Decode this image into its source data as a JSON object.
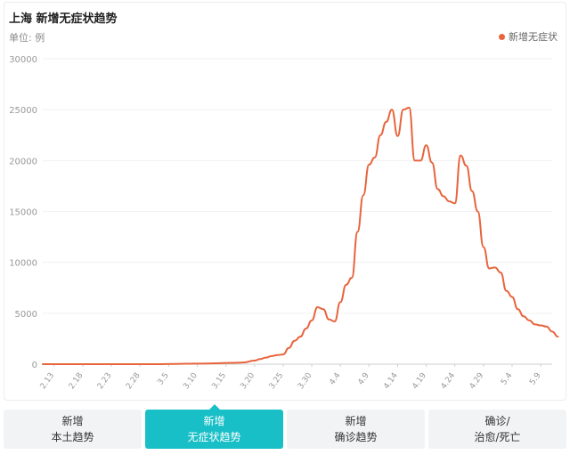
{
  "header": {
    "title": "上海 新增无症状趋势",
    "unit": "单位: 例"
  },
  "legend": {
    "label": "新增无症状",
    "color": "#e8643c"
  },
  "tabs": [
    {
      "line1": "新增",
      "line2": "本土趋势",
      "active": false
    },
    {
      "line1": "新增",
      "line2": "无症状趋势",
      "active": true
    },
    {
      "line1": "新增",
      "line2": "确诊趋势",
      "active": false
    },
    {
      "line1": "确诊/",
      "line2": "治愈/死亡",
      "active": false
    }
  ],
  "chart_data": {
    "type": "line",
    "title": "上海 新增无症状趋势",
    "ylabel": "单位: 例",
    "ylim": [
      0,
      30000
    ],
    "yticks": [
      0,
      5000,
      10000,
      15000,
      20000,
      25000,
      30000
    ],
    "grid": true,
    "legend_position": "top-right",
    "x_tick_labels": [
      "2.13",
      "2.18",
      "2.23",
      "2.28",
      "3.5",
      "3.10",
      "3.15",
      "3.20",
      "3.25",
      "3.30",
      "4.4",
      "4.9",
      "4.14",
      "4.19",
      "4.24",
      "4.29",
      "5.4",
      "5.9"
    ],
    "x_start_index": 0,
    "series": [
      {
        "name": "新增无症状",
        "color": "#e8643c",
        "points": [
          [
            0,
            0
          ],
          [
            20,
            5
          ],
          [
            23,
            20
          ],
          [
            25,
            40
          ],
          [
            28,
            60
          ],
          [
            31,
            100
          ],
          [
            33,
            130
          ],
          [
            35,
            160
          ],
          [
            37,
            350
          ],
          [
            38,
            500
          ],
          [
            39,
            650
          ],
          [
            40,
            800
          ],
          [
            41,
            900
          ],
          [
            42,
            950
          ],
          [
            43,
            1600
          ],
          [
            44,
            2300
          ],
          [
            45,
            2700
          ],
          [
            46,
            3500
          ],
          [
            47,
            4300
          ],
          [
            48,
            5600
          ],
          [
            49,
            5400
          ],
          [
            50,
            4400
          ],
          [
            51,
            4200
          ],
          [
            52,
            6100
          ],
          [
            53,
            7800
          ],
          [
            54,
            8500
          ],
          [
            55,
            13000
          ],
          [
            56,
            16600
          ],
          [
            57,
            19600
          ],
          [
            58,
            20300
          ],
          [
            59,
            22500
          ],
          [
            60,
            23800
          ],
          [
            61,
            25000
          ],
          [
            62,
            22400
          ],
          [
            63,
            25000
          ],
          [
            64,
            25200
          ],
          [
            65,
            20000
          ],
          [
            66,
            20000
          ],
          [
            67,
            21500
          ],
          [
            68,
            19800
          ],
          [
            69,
            17200
          ],
          [
            70,
            16500
          ],
          [
            71,
            16000
          ],
          [
            72,
            15800
          ],
          [
            73,
            20500
          ],
          [
            74,
            19500
          ],
          [
            75,
            17000
          ],
          [
            76,
            15000
          ],
          [
            77,
            11500
          ],
          [
            78,
            9400
          ],
          [
            79,
            9500
          ],
          [
            80,
            9000
          ],
          [
            81,
            7200
          ],
          [
            82,
            6600
          ],
          [
            83,
            5400
          ],
          [
            84,
            4700
          ],
          [
            85,
            4300
          ],
          [
            86,
            3900
          ],
          [
            87,
            3800
          ],
          [
            88,
            3700
          ],
          [
            89,
            3200
          ],
          [
            90,
            2700
          ]
        ]
      }
    ]
  }
}
